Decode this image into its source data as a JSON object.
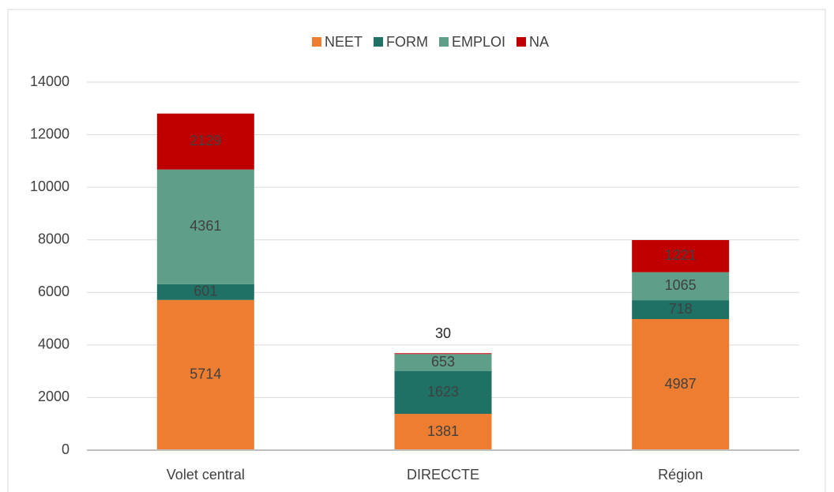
{
  "chart_data": {
    "type": "stacked_bar",
    "categories": [
      "Volet central",
      "DIRECCTE",
      "Région"
    ],
    "series": [
      {
        "name": "NEET",
        "color": "#ed7d31",
        "values": [
          5714,
          1381,
          4987
        ]
      },
      {
        "name": "FORM",
        "color": "#1e7164",
        "values": [
          601,
          1623,
          718
        ]
      },
      {
        "name": "EMPLOI",
        "color": "#5f9e88",
        "values": [
          4361,
          653,
          1065
        ]
      },
      {
        "name": "NA",
        "color": "#c00000",
        "values": [
          2129,
          30,
          1221
        ]
      }
    ],
    "ylim": [
      0,
      14000
    ],
    "yticks": [
      0,
      2000,
      4000,
      6000,
      8000,
      10000,
      12000,
      14000
    ],
    "grid": true,
    "legend": "top"
  }
}
